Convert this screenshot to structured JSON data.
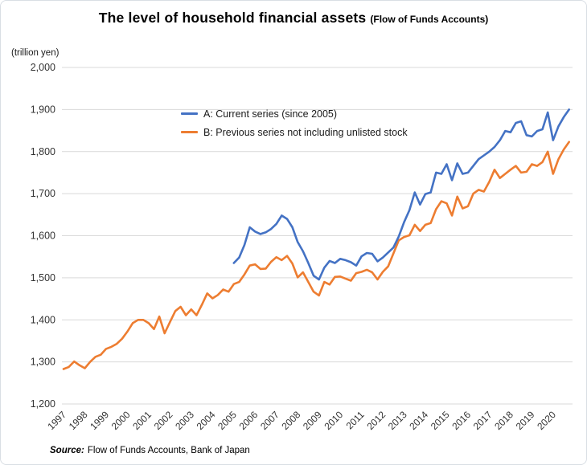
{
  "chart": {
    "title": "The level of household financial assets",
    "title_suffix": "(Flow of Funds Accounts)",
    "unit_label": "(trillion yen)",
    "source_label": "Source:",
    "source_text": "Flow of Funds Accounts, Bank of Japan",
    "colors": {
      "series_a": "#4472C4",
      "series_b": "#ED7D31",
      "gridline": "#D9D9D9",
      "tick_text": "#333333"
    }
  },
  "chart_data": {
    "type": "line",
    "title": "The level of household financial assets (Flow of Funds Accounts)",
    "ylabel": "(trillion yen)",
    "ylim": [
      1200,
      2000
    ],
    "y_ticks": [
      1200,
      1300,
      1400,
      1500,
      1600,
      1700,
      1800,
      1900,
      2000
    ],
    "x_frequency": "quarterly",
    "x_range": [
      "1997Q1",
      "2020Q4"
    ],
    "x_tick_labels": [
      "1997",
      "1998",
      "1999",
      "2000",
      "2001",
      "2002",
      "2003",
      "2004",
      "2005",
      "2006",
      "2007",
      "2008",
      "2009",
      "2010",
      "2011",
      "2012",
      "2013",
      "2014",
      "2015",
      "2016",
      "2017",
      "2018",
      "2019",
      "2020"
    ],
    "grid": "horizontal-only",
    "legend_position": "inside-top-left",
    "series": [
      {
        "name": "A: Current series (since 2005)",
        "color": "#4472C4",
        "start": "2005Q1",
        "x_start_index": 32,
        "values": [
          1535,
          1548,
          1578,
          1620,
          1610,
          1604,
          1608,
          1616,
          1628,
          1648,
          1640,
          1620,
          1585,
          1563,
          1535,
          1505,
          1496,
          1524,
          1540,
          1535,
          1545,
          1542,
          1537,
          1529,
          1551,
          1559,
          1557,
          1539,
          1548,
          1560,
          1572,
          1598,
          1632,
          1661,
          1703,
          1674,
          1699,
          1703,
          1750,
          1747,
          1770,
          1732,
          1772,
          1747,
          1750,
          1766,
          1782,
          1791,
          1800,
          1811,
          1827,
          1849,
          1846,
          1868,
          1872,
          1839,
          1836,
          1849,
          1853,
          1893,
          1827,
          1860,
          1882,
          1900
        ]
      },
      {
        "name": "B: Previous series not including unlisted stock",
        "color": "#ED7D31",
        "start": "1997Q1",
        "x_start_index": 0,
        "values": [
          1283,
          1288,
          1301,
          1292,
          1285,
          1300,
          1312,
          1317,
          1331,
          1336,
          1343,
          1355,
          1372,
          1392,
          1400,
          1400,
          1392,
          1378,
          1408,
          1368,
          1395,
          1421,
          1431,
          1411,
          1425,
          1411,
          1436,
          1463,
          1451,
          1459,
          1472,
          1467,
          1485,
          1490,
          1508,
          1529,
          1532,
          1521,
          1522,
          1538,
          1549,
          1542,
          1552,
          1534,
          1501,
          1513,
          1490,
          1467,
          1458,
          1490,
          1484,
          1502,
          1503,
          1498,
          1493,
          1511,
          1514,
          1519,
          1513,
          1496,
          1514,
          1527,
          1558,
          1589,
          1597,
          1601,
          1626,
          1611,
          1626,
          1630,
          1663,
          1682,
          1677,
          1648,
          1693,
          1665,
          1670,
          1700,
          1709,
          1705,
          1728,
          1757,
          1737,
          1747,
          1757,
          1766,
          1750,
          1752,
          1770,
          1766,
          1775,
          1800,
          1747,
          1782,
          1805,
          1823
        ]
      }
    ]
  }
}
